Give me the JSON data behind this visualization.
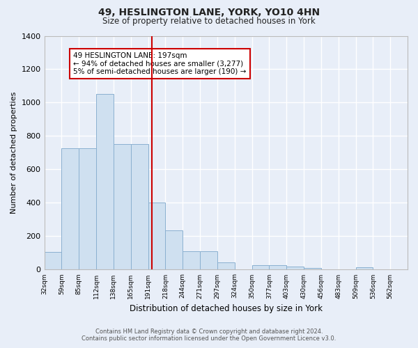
{
  "title": "49, HESLINGTON LANE, YORK, YO10 4HN",
  "subtitle": "Size of property relative to detached houses in York",
  "xlabel": "Distribution of detached houses by size in York",
  "ylabel": "Number of detached properties",
  "bar_color": "#cfe0f0",
  "bar_edge_color": "#8ab0d0",
  "background_color": "#e8eef8",
  "grid_color": "#ffffff",
  "bin_labels": [
    "32sqm",
    "59sqm",
    "85sqm",
    "112sqm",
    "138sqm",
    "165sqm",
    "191sqm",
    "218sqm",
    "244sqm",
    "271sqm",
    "297sqm",
    "324sqm",
    "350sqm",
    "377sqm",
    "403sqm",
    "430sqm",
    "456sqm",
    "483sqm",
    "509sqm",
    "536sqm",
    "562sqm"
  ],
  "bar_values": [
    105,
    725,
    725,
    1050,
    750,
    750,
    400,
    235,
    110,
    110,
    45,
    0,
    25,
    25,
    18,
    10,
    0,
    0,
    15,
    0,
    0
  ],
  "vline_x_index": 6,
  "vline_color": "#cc0000",
  "ylim": [
    0,
    1400
  ],
  "yticks": [
    0,
    200,
    400,
    600,
    800,
    1000,
    1200,
    1400
  ],
  "annotation_text": "49 HESLINGTON LANE: 197sqm\n← 94% of detached houses are smaller (3,277)\n5% of semi-detached houses are larger (190) →",
  "annotation_box_color": "#ffffff",
  "annotation_box_edge": "#cc0000",
  "footer_line1": "Contains HM Land Registry data © Crown copyright and database right 2024.",
  "footer_line2": "Contains public sector information licensed under the Open Government Licence v3.0.",
  "n_bins": 21
}
